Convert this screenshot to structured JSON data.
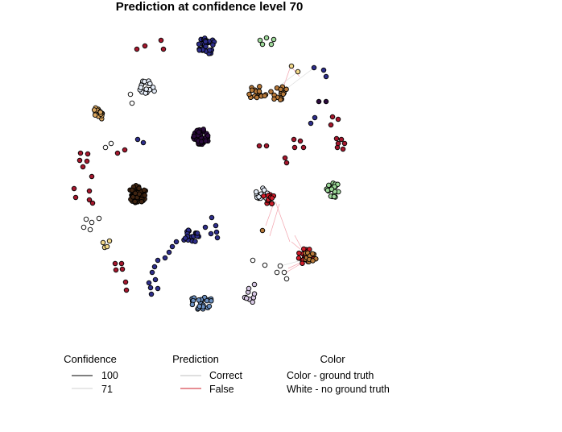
{
  "title": "Prediction at confidence level 70",
  "chart_data": {
    "type": "network",
    "title": "Prediction at confidence level 70",
    "node_colors": {
      "navy": "#2e2e8a",
      "darkpurple": "#2b0a3d",
      "darkbrown": "#3f2411",
      "crimson": "#a5172d",
      "red": "#cf1d2a",
      "brown": "#b87a3a",
      "tan": "#d9a55e",
      "lightgreen": "#9ed99a",
      "lightblue": "#e6eefa",
      "white": "#ffffff",
      "lavender": "#d7c8e4",
      "steel": "#6a8fc0",
      "yellow": "#f3d98a"
    },
    "edge_colors": {
      "correct": "#bfbfbf",
      "false": "#e0344a",
      "conf100": "#000000",
      "conf71": "#d0d0d0"
    },
    "clusters": [
      {
        "id": "c1",
        "color": "navy",
        "nodes": 30
      },
      {
        "id": "c2",
        "color": "darkpurple",
        "nodes": 45
      },
      {
        "id": "c3",
        "color": "darkbrown",
        "nodes": 45
      },
      {
        "id": "c4",
        "color": "lightgreen",
        "nodes": 20
      },
      {
        "id": "c5",
        "color": "brown",
        "nodes": 30
      },
      {
        "id": "c6",
        "color": "white",
        "nodes": 25
      },
      {
        "id": "c7",
        "color": "red",
        "nodes": 40
      },
      {
        "id": "c8",
        "color": "navy",
        "nodes": 40
      },
      {
        "id": "c9",
        "color": "steel",
        "nodes": 22
      },
      {
        "id": "c10",
        "color": "lavender",
        "nodes": 8
      }
    ]
  },
  "legend": {
    "confidence": {
      "title": "Confidence",
      "items": [
        {
          "label": "100"
        },
        {
          "label": "71"
        }
      ]
    },
    "prediction": {
      "title": "Prediction",
      "items": [
        {
          "label": "Correct"
        },
        {
          "label": "False"
        }
      ]
    },
    "color": {
      "title": "Color",
      "items": [
        {
          "label": "Color - ground truth"
        },
        {
          "label": "White - no ground truth"
        }
      ]
    }
  }
}
